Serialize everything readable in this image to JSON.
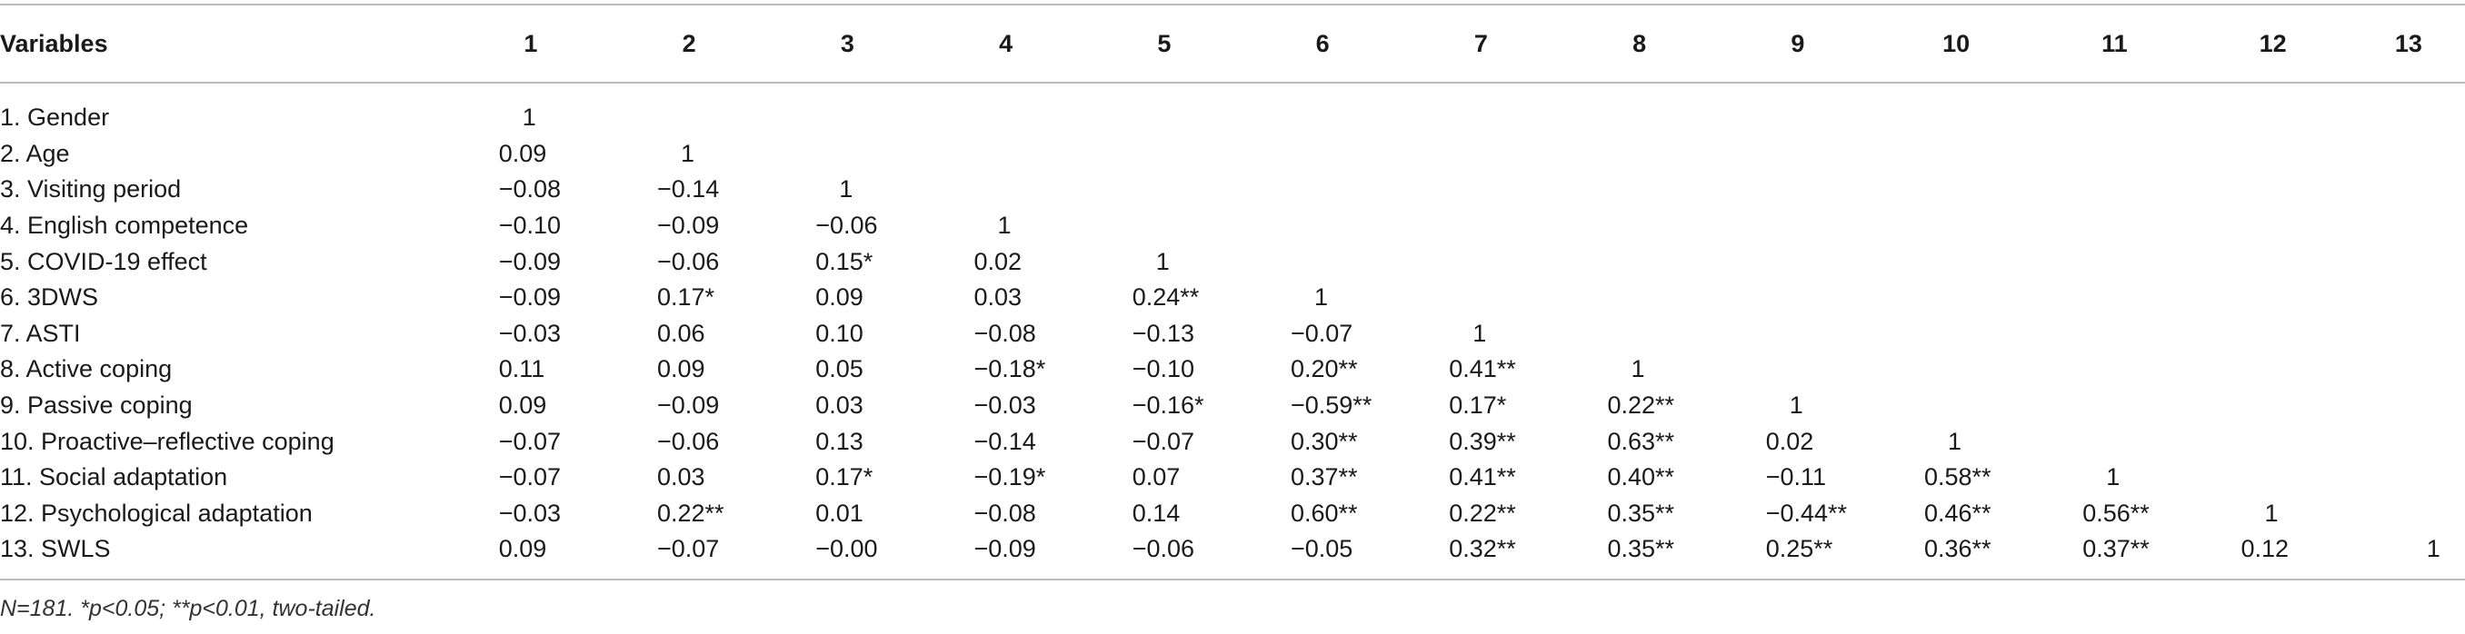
{
  "table": {
    "headers": [
      "Variables",
      "1",
      "2",
      "3",
      "4",
      "5",
      "6",
      "7",
      "8",
      "9",
      "10",
      "11",
      "12",
      "13"
    ],
    "rows": [
      {
        "label": "1. Gender",
        "values": [
          "1",
          "",
          "",
          "",
          "",
          "",
          "",
          "",
          "",
          "",
          "",
          "",
          ""
        ]
      },
      {
        "label": "2. Age",
        "values": [
          "0.09",
          "1",
          "",
          "",
          "",
          "",
          "",
          "",
          "",
          "",
          "",
          "",
          ""
        ]
      },
      {
        "label": "3. Visiting period",
        "values": [
          "−0.08",
          "−0.14",
          "1",
          "",
          "",
          "",
          "",
          "",
          "",
          "",
          "",
          "",
          ""
        ]
      },
      {
        "label": "4. English competence",
        "values": [
          "−0.10",
          "−0.09",
          "−0.06",
          "1",
          "",
          "",
          "",
          "",
          "",
          "",
          "",
          "",
          ""
        ]
      },
      {
        "label": "5. COVID-19 effect",
        "values": [
          "−0.09",
          "−0.06",
          "0.15*",
          "0.02",
          "1",
          "",
          "",
          "",
          "",
          "",
          "",
          "",
          ""
        ]
      },
      {
        "label": "6. 3DWS",
        "values": [
          "−0.09",
          "0.17*",
          "0.09",
          "0.03",
          "0.24**",
          "1",
          "",
          "",
          "",
          "",
          "",
          "",
          ""
        ]
      },
      {
        "label": "7. ASTI",
        "values": [
          "−0.03",
          "0.06",
          "0.10",
          "−0.08",
          "−0.13",
          "−0.07",
          "1",
          "",
          "",
          "",
          "",
          "",
          ""
        ]
      },
      {
        "label": "8. Active coping",
        "values": [
          "0.11",
          "0.09",
          "0.05",
          "−0.18*",
          "−0.10",
          "0.20**",
          "0.41**",
          "1",
          "",
          "",
          "",
          "",
          ""
        ]
      },
      {
        "label": "9. Passive coping",
        "values": [
          "0.09",
          "−0.09",
          "0.03",
          "−0.03",
          "−0.16*",
          "−0.59**",
          "0.17*",
          "0.22**",
          "1",
          "",
          "",
          "",
          ""
        ]
      },
      {
        "label": "10. Proactive–reflective coping",
        "values": [
          "−0.07",
          "−0.06",
          "0.13",
          "−0.14",
          "−0.07",
          "0.30**",
          "0.39**",
          "0.63**",
          "0.02",
          "1",
          "",
          "",
          ""
        ]
      },
      {
        "label": "11. Social adaptation",
        "values": [
          "−0.07",
          "0.03",
          "0.17*",
          "−0.19*",
          "0.07",
          "0.37**",
          "0.41**",
          "0.40**",
          "−0.11",
          "0.58**",
          "1",
          "",
          ""
        ]
      },
      {
        "label": "12. Psychological adaptation",
        "values": [
          "−0.03",
          "0.22**",
          "0.01",
          "−0.08",
          "0.14",
          "0.60**",
          "0.22**",
          "0.35**",
          "−0.44**",
          "0.46**",
          "0.56**",
          "1",
          ""
        ]
      },
      {
        "label": "13. SWLS",
        "values": [
          "0.09",
          "−0.07",
          "−0.00",
          "−0.09",
          "−0.06",
          "−0.05",
          "0.32**",
          "0.35**",
          "0.25**",
          "0.36**",
          "0.37**",
          "0.12",
          "1"
        ]
      }
    ]
  },
  "note": "N=181. *p<0.05; **p<0.01, two-tailed."
}
